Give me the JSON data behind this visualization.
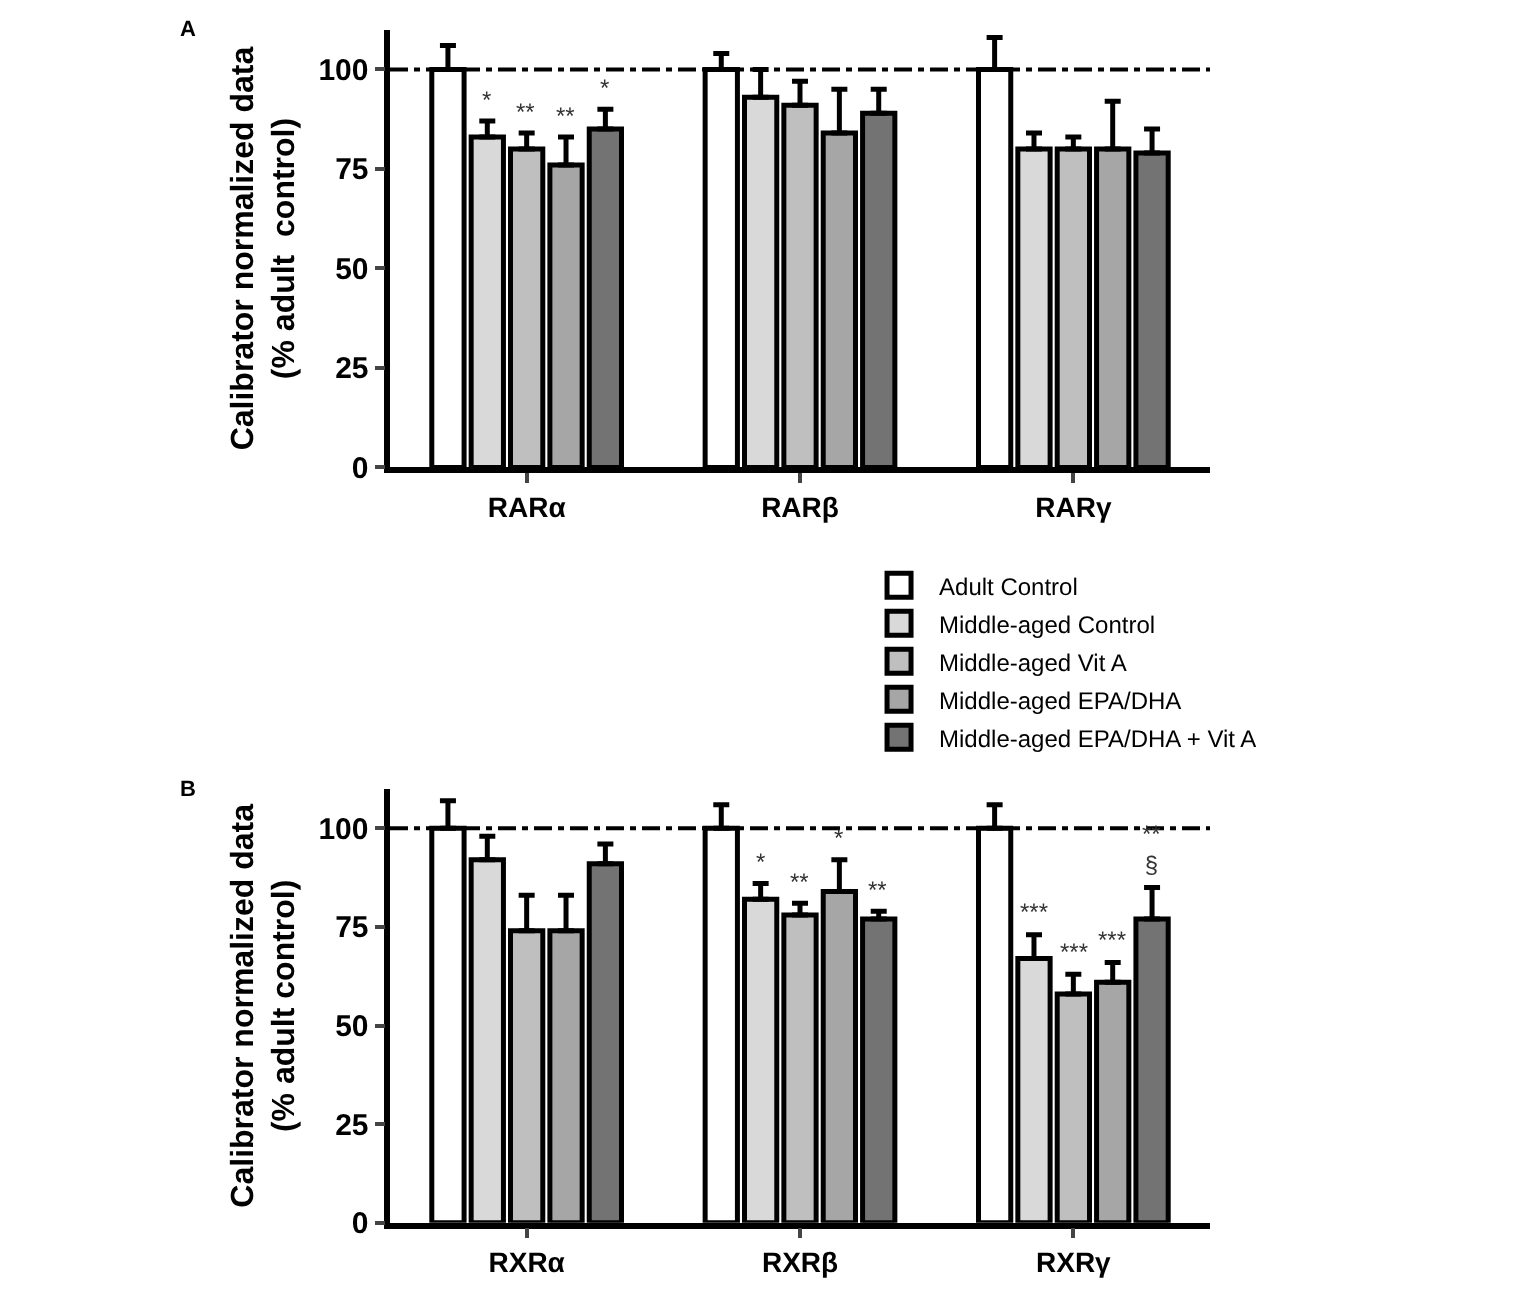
{
  "chart_data": [
    {
      "type": "bar",
      "title": "A",
      "ylabel": "Calibrator normalized data\n(% adult  control)",
      "categories": [
        "RARα",
        "RARβ",
        "RARγ"
      ],
      "ylim": [
        0,
        110
      ],
      "yticks": [
        0,
        25,
        50,
        75,
        100
      ],
      "legend": "bottom right",
      "ref_lines": [
        {
          "axis": "y",
          "value": 100,
          "color": "#000000",
          "line_style": "dashdot"
        }
      ],
      "series": [
        {
          "name": "Adult Control",
          "color": "#ffffff",
          "values": [
            100,
            100,
            100
          ],
          "errors": [
            [
              100,
              106
            ],
            [
              100,
              104
            ],
            [
              100,
              108
            ]
          ],
          "value_labels": [
            null,
            null,
            null
          ]
        },
        {
          "name": "Middle-aged Control",
          "color": "#d9d9d9",
          "values": [
            83,
            93,
            80
          ],
          "errors": [
            [
              83,
              87
            ],
            [
              93,
              100
            ],
            [
              80,
              84
            ]
          ],
          "value_labels": [
            "*",
            null,
            null
          ]
        },
        {
          "name": "Middle-aged Vit A",
          "color": "#bfbfbf",
          "values": [
            80,
            91,
            80
          ],
          "errors": [
            [
              80,
              84
            ],
            [
              91,
              97
            ],
            [
              80,
              83
            ]
          ],
          "value_labels": [
            "**",
            null,
            null
          ]
        },
        {
          "name": "Middle-aged EPA/DHA",
          "color": "#a6a6a6",
          "values": [
            76,
            84,
            80
          ],
          "errors": [
            [
              76,
              83
            ],
            [
              84,
              95
            ],
            [
              80,
              92
            ]
          ],
          "value_labels": [
            "**",
            null,
            null
          ]
        },
        {
          "name": "Middle-aged EPA/DHA + Vit A",
          "color": "#737373",
          "values": [
            85,
            89,
            79
          ],
          "errors": [
            [
              85,
              90
            ],
            [
              89,
              95
            ],
            [
              79,
              85
            ]
          ],
          "value_labels": [
            "*",
            null,
            null
          ]
        }
      ]
    },
    {
      "type": "bar",
      "title": "B",
      "ylabel": "Calibrator normalized data\n(% adult control)",
      "categories": [
        "RXRα",
        "RXRβ",
        "RXRγ"
      ],
      "ylim": [
        0,
        110
      ],
      "yticks": [
        0,
        25,
        50,
        75,
        100
      ],
      "ref_lines": [
        {
          "axis": "y",
          "value": 100,
          "color": "#000000",
          "line_style": "dashdot"
        }
      ],
      "series": [
        {
          "color": "#ffffff",
          "values": [
            100,
            100,
            100
          ],
          "errors": [
            [
              100,
              107
            ],
            [
              100,
              106
            ],
            [
              100,
              106
            ]
          ],
          "value_labels": [
            null,
            null,
            null
          ]
        },
        {
          "color": "#d9d9d9",
          "values": [
            92,
            82,
            67
          ],
          "errors": [
            [
              92,
              98
            ],
            [
              82,
              86
            ],
            [
              67,
              73
            ]
          ],
          "value_labels": [
            null,
            "*",
            "***"
          ]
        },
        {
          "color": "#bfbfbf",
          "values": [
            74,
            78,
            58
          ],
          "errors": [
            [
              74,
              83
            ],
            [
              78,
              81
            ],
            [
              58,
              63
            ]
          ],
          "value_labels": [
            null,
            "**",
            "***"
          ]
        },
        {
          "color": "#a6a6a6",
          "values": [
            74,
            84,
            61
          ],
          "errors": [
            [
              74,
              83
            ],
            [
              84,
              92
            ],
            [
              61,
              66
            ]
          ],
          "value_labels": [
            null,
            "*",
            "***"
          ]
        },
        {
          "color": "#737373",
          "values": [
            91,
            77,
            77
          ],
          "errors": [
            [
              91,
              96
            ],
            [
              77,
              79
            ],
            [
              77,
              85
            ]
          ],
          "value_labels": [
            null,
            "**",
            "**\n§"
          ]
        }
      ]
    }
  ]
}
